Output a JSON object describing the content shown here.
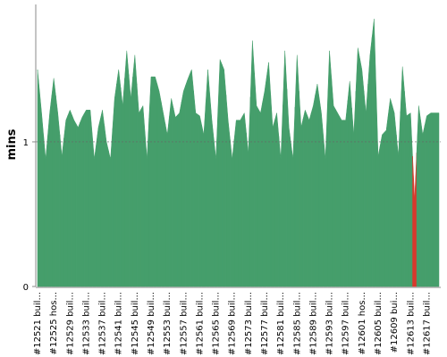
{
  "chart_data": {
    "type": "area",
    "y_label": "mins",
    "ylim": [
      0,
      1.95
    ],
    "yticks": [
      0,
      1
    ],
    "grid": true,
    "categories": [
      "#12521 buil...",
      null,
      null,
      null,
      "#12525 hos...",
      null,
      null,
      null,
      "#12529 buil...",
      null,
      null,
      null,
      "#12533 buil...",
      null,
      null,
      null,
      "#12537 buil...",
      null,
      null,
      null,
      "#12541 buil...",
      null,
      null,
      null,
      "#12545 buil...",
      null,
      null,
      null,
      "#12549 buil...",
      null,
      null,
      null,
      "#12553 buil...",
      null,
      null,
      null,
      "#12557 buil...",
      null,
      null,
      null,
      "#12561 buil...",
      null,
      null,
      null,
      "#12565 buil...",
      null,
      null,
      null,
      "#12569 buil...",
      null,
      null,
      null,
      "#12573 buil...",
      null,
      null,
      null,
      "#12577 buil...",
      null,
      null,
      null,
      "#12581 buil...",
      null,
      null,
      null,
      "#12585 buil...",
      null,
      null,
      null,
      "#12589 buil...",
      null,
      null,
      null,
      "#12593 buil...",
      null,
      null,
      null,
      "#12597 buil...",
      null,
      null,
      null,
      "#12601 hos...",
      null,
      null,
      null,
      "#12605 buil...",
      null,
      null,
      null,
      "#12609 bui...",
      null,
      null,
      null,
      "#12613 buil...",
      null,
      null,
      null,
      "#12617 buil...",
      null,
      null,
      null
    ],
    "values": [
      1.5,
      1.2,
      0.88,
      1.2,
      1.44,
      1.2,
      0.9,
      1.15,
      1.22,
      1.15,
      1.1,
      1.17,
      1.22,
      1.22,
      0.88,
      1.1,
      1.22,
      1.0,
      0.88,
      1.3,
      1.5,
      1.25,
      1.63,
      1.3,
      1.6,
      1.2,
      1.25,
      0.88,
      1.45,
      1.45,
      1.35,
      1.2,
      1.05,
      1.3,
      1.17,
      1.2,
      1.35,
      1.43,
      1.5,
      1.2,
      1.18,
      1.05,
      1.5,
      1.15,
      0.88,
      1.57,
      1.5,
      1.15,
      0.88,
      1.15,
      1.15,
      1.2,
      0.92,
      1.7,
      1.25,
      1.2,
      1.35,
      1.55,
      1.1,
      1.2,
      0.88,
      1.63,
      1.1,
      0.88,
      1.6,
      1.1,
      1.22,
      1.15,
      1.25,
      1.4,
      1.2,
      0.88,
      1.63,
      1.25,
      1.2,
      1.15,
      1.15,
      1.42,
      1.05,
      1.65,
      1.5,
      1.2,
      1.6,
      1.85,
      0.9,
      1.05,
      1.08,
      1.3,
      1.2,
      0.9,
      1.52,
      1.18,
      1.2,
      0.6,
      1.25,
      1.05,
      1.18,
      1.2,
      1.2,
      1.2
    ],
    "colors": [
      "#459e6b",
      "#459e6b",
      "#459e6b",
      "#459e6b",
      "#459e6b",
      "#459e6b",
      "#459e6b",
      "#459e6b",
      "#459e6b",
      "#459e6b",
      "#459e6b",
      "#459e6b",
      "#459e6b",
      "#459e6b",
      "#459e6b",
      "#459e6b",
      "#459e6b",
      "#459e6b",
      "#459e6b",
      "#459e6b",
      "#459e6b",
      "#459e6b",
      "#459e6b",
      "#459e6b",
      "#459e6b",
      "#459e6b",
      "#459e6b",
      "#459e6b",
      "#459e6b",
      "#459e6b",
      "#459e6b",
      "#459e6b",
      "#459e6b",
      "#459e6b",
      "#459e6b",
      "#459e6b",
      "#459e6b",
      "#459e6b",
      "#459e6b",
      "#459e6b",
      "#459e6b",
      "#459e6b",
      "#459e6b",
      "#459e6b",
      "#459e6b",
      "#459e6b",
      "#459e6b",
      "#459e6b",
      "#459e6b",
      "#459e6b",
      "#459e6b",
      "#459e6b",
      "#459e6b",
      "#459e6b",
      "#459e6b",
      "#459e6b",
      "#459e6b",
      "#459e6b",
      "#459e6b",
      "#459e6b",
      "#459e6b",
      "#459e6b",
      "#459e6b",
      "#459e6b",
      "#459e6b",
      "#459e6b",
      "#459e6b",
      "#459e6b",
      "#459e6b",
      "#459e6b",
      "#459e6b",
      "#459e6b",
      "#459e6b",
      "#459e6b",
      "#459e6b",
      "#459e6b",
      "#459e6b",
      "#459e6b",
      "#459e6b",
      "#459e6b",
      "#459e6b",
      "#459e6b",
      "#459e6b",
      "#459e6b",
      "#459e6b",
      "#459e6b",
      "#459e6b",
      "#459e6b",
      "#459e6b",
      "#459e6b",
      "#459e6b",
      "#459e6b",
      "#459e6b",
      "#d9382c",
      "#459e6b",
      "#459e6b",
      "#459e6b",
      "#459e6b",
      "#459e6b",
      "#459e6b"
    ]
  }
}
